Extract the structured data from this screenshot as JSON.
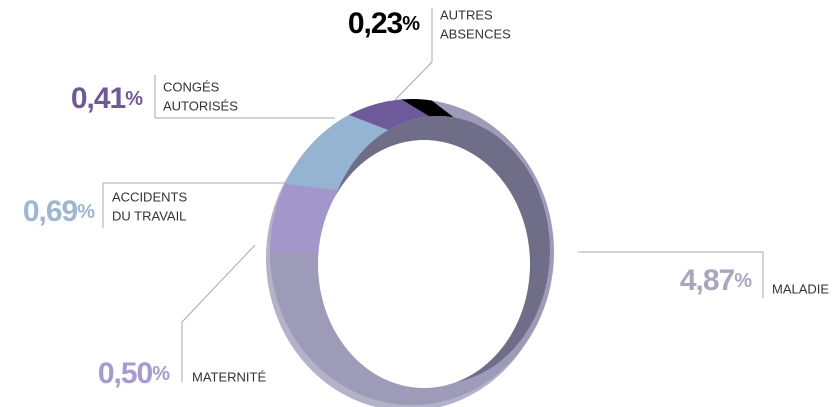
{
  "chart_data": {
    "type": "pie",
    "donut": true,
    "categories": [
      [
        "MALADIE"
      ],
      [
        "MATERNITÉ"
      ],
      [
        "ACCIDENTS",
        "DU TRAVAIL"
      ],
      [
        "CONGÉS",
        "AUTORISÉS"
      ],
      [
        "AUTRES",
        "ABSENCES"
      ]
    ],
    "values": [
      4.87,
      0.5,
      0.69,
      0.41,
      0.23
    ],
    "value_labels": [
      "4,87",
      "0,50",
      "0,69",
      "0,41",
      "0,23"
    ],
    "unit": "%",
    "colors": [
      "#9d9bb8",
      "#a396cb",
      "#94b4d2",
      "#6e5a9a",
      "#000000"
    ],
    "label_colors": [
      "#a9a7c0",
      "#a59bd0",
      "#9cb6d3",
      "#6e5a9a",
      "#000000"
    ]
  }
}
